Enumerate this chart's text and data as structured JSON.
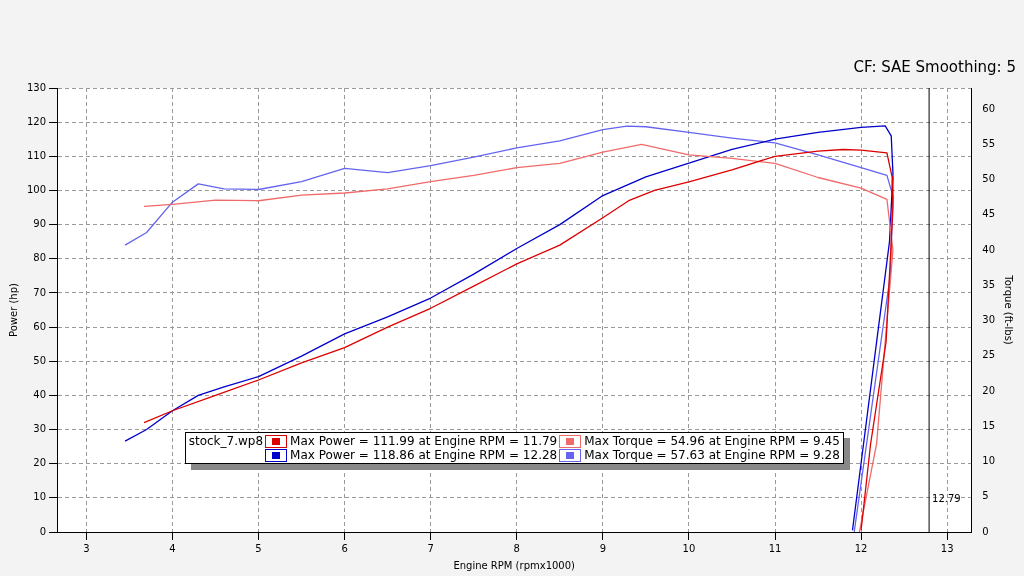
{
  "chart_data": {
    "type": "line",
    "xlabel": "Engine RPM (rpmx1000)",
    "ylabel": "Power (hp)",
    "y2label": "Torque (ft-lbs)",
    "annotations": [
      "CF: SAE Smoothing: 5",
      "stock_7.wp8"
    ],
    "xlim": [
      2.66,
      13.28
    ],
    "xticks": [
      3,
      4,
      5,
      6,
      7,
      8,
      9,
      10,
      11,
      12,
      13
    ],
    "ylim": [
      0,
      130
    ],
    "yticks": [
      0,
      10,
      20,
      30,
      40,
      50,
      60,
      70,
      80,
      90,
      100,
      110,
      120,
      130
    ],
    "y2lim": [
      0,
      63
    ],
    "y2ticks": [
      0,
      5,
      10,
      15,
      20,
      25,
      30,
      35,
      40,
      45,
      50,
      55,
      60
    ],
    "grid": true,
    "legend": "bottom",
    "marker": "none",
    "line_style": "solid",
    "ref_lines": [
      {
        "axis": "x",
        "value": 12.79,
        "label": "12.79",
        "color": "#000000"
      }
    ],
    "series": [
      {
        "name": "Max Power = 111.99 at Engine RPM = 11.79",
        "color": "#dd0000",
        "x": [
          3.67,
          4.0,
          4.5,
          5.0,
          5.5,
          6.0,
          6.5,
          7.0,
          7.5,
          8.0,
          8.5,
          9.0,
          9.3,
          9.6,
          10.0,
          10.5,
          11.0,
          11.5,
          11.79,
          12.0,
          12.3,
          12.36,
          12.37,
          12.29,
          12.11,
          12.0
        ],
        "values": [
          32,
          35.5,
          40,
          44.5,
          49.5,
          54,
          60,
          65.5,
          72,
          78.5,
          84,
          92,
          97,
          100,
          102.5,
          106,
          110,
          111.5,
          112,
          111.8,
          111,
          104,
          95,
          55.6,
          25.7,
          0.5
        ]
      },
      {
        "name": "Max Torque = 54.96 at Engine RPM = 9.45",
        "color": "#f06a6a",
        "axis": "y2",
        "x": [
          3.67,
          4.0,
          4.5,
          5.0,
          5.5,
          6.0,
          6.5,
          7.0,
          7.5,
          8.0,
          8.5,
          9.0,
          9.45,
          10.0,
          10.5,
          11.0,
          11.5,
          12.0,
          12.3,
          12.37,
          12.18,
          11.98
        ],
        "values": [
          46.2,
          46.5,
          47.1,
          47,
          47.8,
          48.1,
          48.7,
          49.7,
          50.6,
          51.7,
          52.3,
          53.9,
          55,
          53.5,
          53,
          52.3,
          50.3,
          48.8,
          47.2,
          40,
          12.5,
          0
        ]
      },
      {
        "name": "Max Power = 118.86 at Engine RPM = 12.28",
        "color": "#0000cc",
        "x": [
          3.45,
          3.7,
          4.0,
          4.3,
          4.6,
          5.0,
          5.5,
          6.0,
          6.5,
          7.0,
          7.5,
          8.0,
          8.5,
          9.0,
          9.5,
          10.0,
          10.5,
          11.0,
          11.5,
          12.0,
          12.28,
          12.35,
          12.37,
          12.33,
          12.18,
          11.9
        ],
        "values": [
          26.6,
          30,
          35.5,
          40,
          42.5,
          45.5,
          51.5,
          58,
          63,
          68.5,
          75.5,
          83,
          90,
          98.5,
          104,
          108,
          112,
          115,
          117,
          118.5,
          118.9,
          116,
          105,
          85,
          55.6,
          0.5
        ]
      },
      {
        "name": "Max Torque = 57.63 at Engine RPM = 9.28",
        "color": "#6464f0",
        "axis": "y2",
        "x": [
          3.45,
          3.7,
          4.0,
          4.3,
          4.6,
          5.0,
          5.5,
          6.0,
          6.5,
          7.0,
          7.5,
          8.0,
          8.5,
          9.0,
          9.28,
          9.5,
          10.0,
          10.5,
          11.0,
          11.5,
          12.0,
          12.3,
          12.37,
          12.34,
          11.92
        ],
        "values": [
          40.7,
          42.5,
          46.8,
          49.4,
          48.7,
          48.6,
          49.7,
          51.6,
          51,
          52,
          53.2,
          54.5,
          55.5,
          57.1,
          57.6,
          57.5,
          56.7,
          55.9,
          55.2,
          53.5,
          51.7,
          50.6,
          47.7,
          36.5,
          0
        ]
      }
    ]
  }
}
